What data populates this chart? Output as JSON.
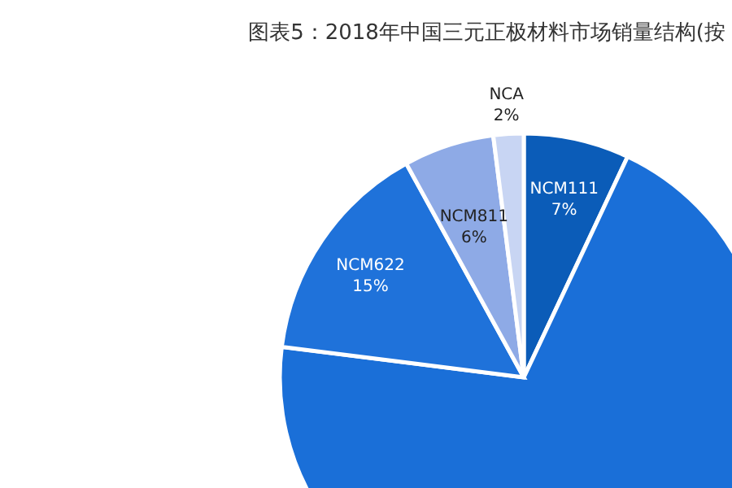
{
  "chart_data": {
    "type": "pie",
    "title": "图表5：2018年中国三元正极材料市场销量结构(按",
    "categories": [
      "NCM111",
      null,
      "NCM622",
      "NCM811",
      "NCA"
    ],
    "values": [
      7,
      70,
      15,
      6,
      2
    ],
    "value_labels": [
      "7%",
      null,
      "15%",
      "6%",
      "2%"
    ],
    "colors": [
      "#0b5cb8",
      "#1a6fd8",
      "#1f72da",
      "#8eaae6",
      "#c8d5f3"
    ]
  }
}
